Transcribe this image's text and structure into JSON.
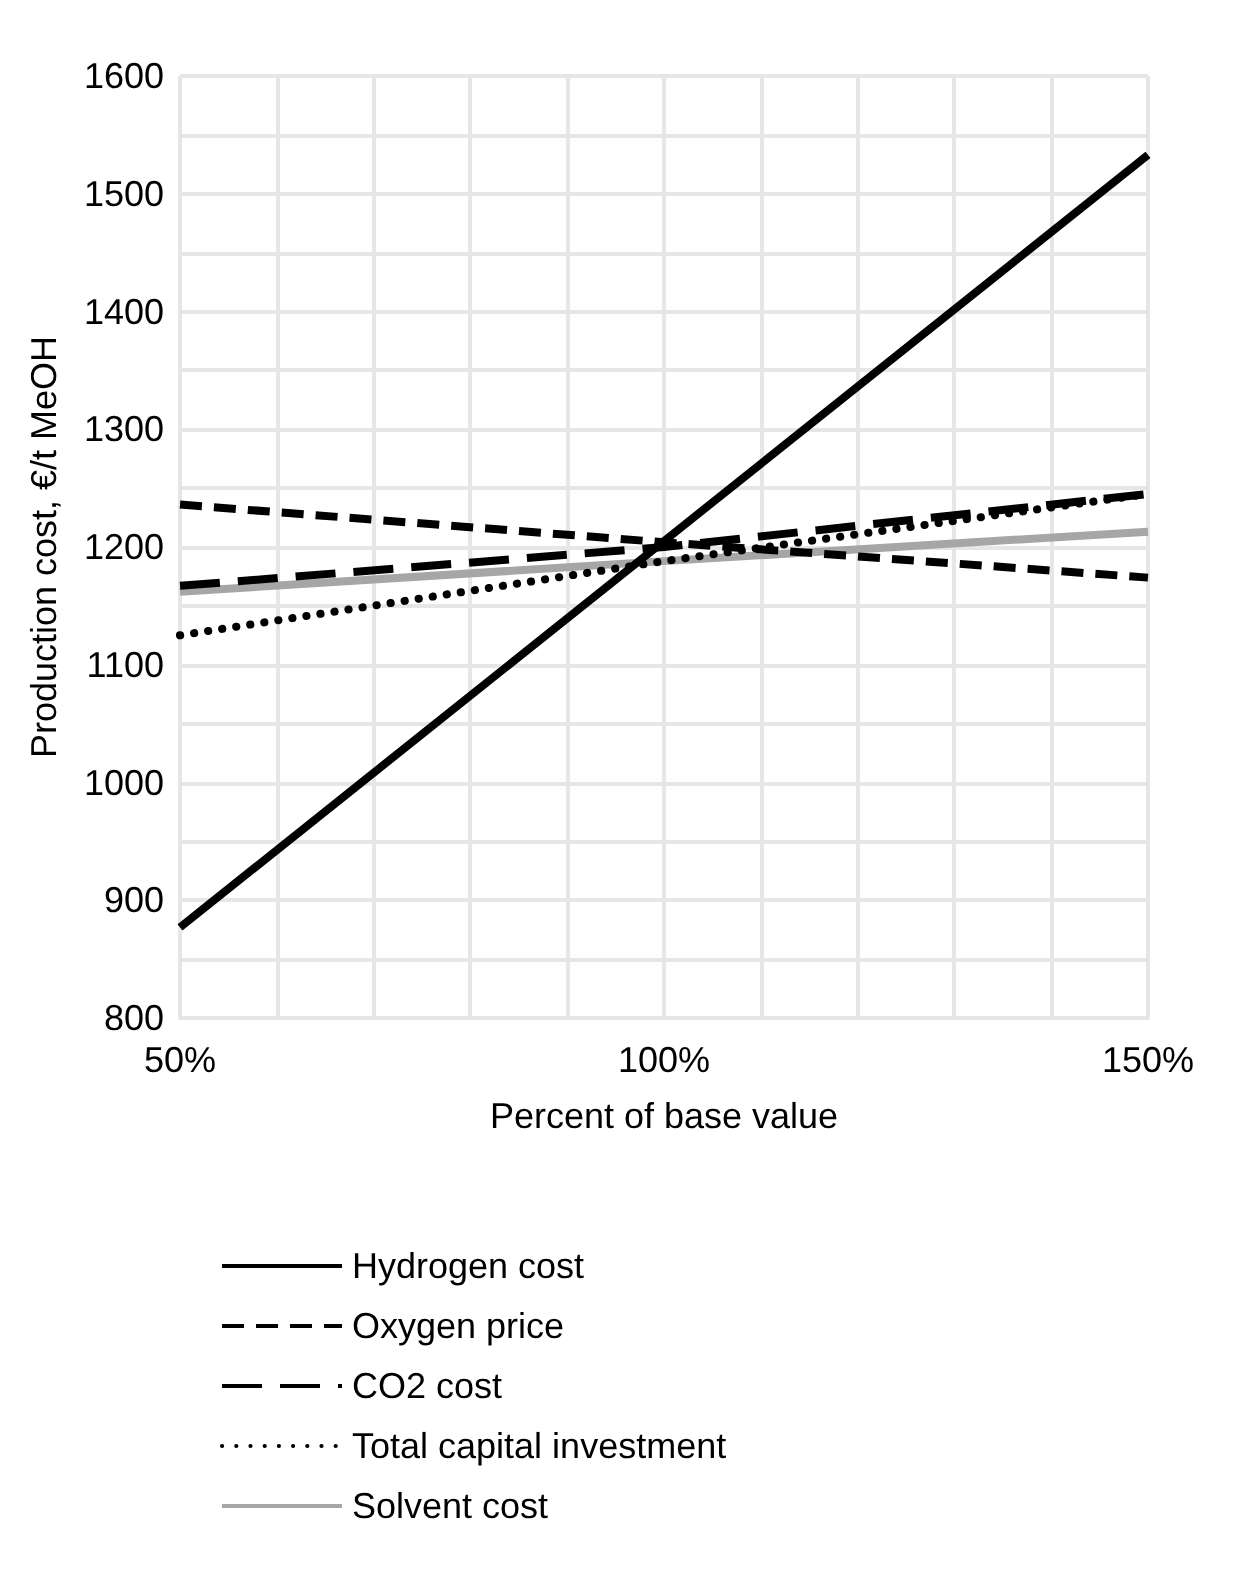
{
  "chart_data": {
    "type": "line",
    "xlabel": "Percent of base value",
    "ylabel": "Production cost, €/t MeOH",
    "x": [
      50,
      100,
      150
    ],
    "xlim": [
      50,
      150
    ],
    "xticks": [
      {
        "value": 50,
        "label": "50%"
      },
      {
        "value": 60,
        "label": null
      },
      {
        "value": 70,
        "label": null
      },
      {
        "value": 80,
        "label": null
      },
      {
        "value": 90,
        "label": null
      },
      {
        "value": 100,
        "label": "100%"
      },
      {
        "value": 110,
        "label": null
      },
      {
        "value": 120,
        "label": null
      },
      {
        "value": 130,
        "label": null
      },
      {
        "value": 140,
        "label": null
      },
      {
        "value": 150,
        "label": "150%"
      }
    ],
    "ylim": [
      800,
      1600
    ],
    "yticks": [
      800,
      {
        "value": 850,
        "label": null
      },
      900,
      {
        "value": 950,
        "label": null
      },
      1000,
      {
        "value": 1050,
        "label": null
      },
      1100,
      {
        "value": 1150,
        "label": null
      },
      1200,
      {
        "value": 1250,
        "label": null
      },
      1300,
      {
        "value": 1350,
        "label": null
      },
      1400,
      {
        "value": 1450,
        "label": null
      },
      1500,
      {
        "value": 1550,
        "label": null
      },
      1600
    ],
    "grid": true,
    "legend": "bottom",
    "marker": "none",
    "series": [
      {
        "name": "Hydrogen cost",
        "color": "#000000",
        "line_style": "solid",
        "values": [
          877,
          1205,
          1533
        ]
      },
      {
        "name": "Oxygen price",
        "color": "#000000",
        "line_style": "dashed",
        "values": [
          1236,
          1204,
          1174
        ]
      },
      {
        "name": "CO2 cost",
        "color": "#000000",
        "line_style": "dashed",
        "values": [
          1167,
          1200,
          1245
        ]
      },
      {
        "name": "Total capital investment",
        "color": "#000000",
        "line_style": "dotted",
        "values": [
          1125,
          1188,
          1245
        ]
      },
      {
        "name": "Solvent cost",
        "color": "#a6a6a6",
        "line_style": "solid",
        "values": [
          1162,
          1188,
          1213
        ]
      }
    ]
  }
}
